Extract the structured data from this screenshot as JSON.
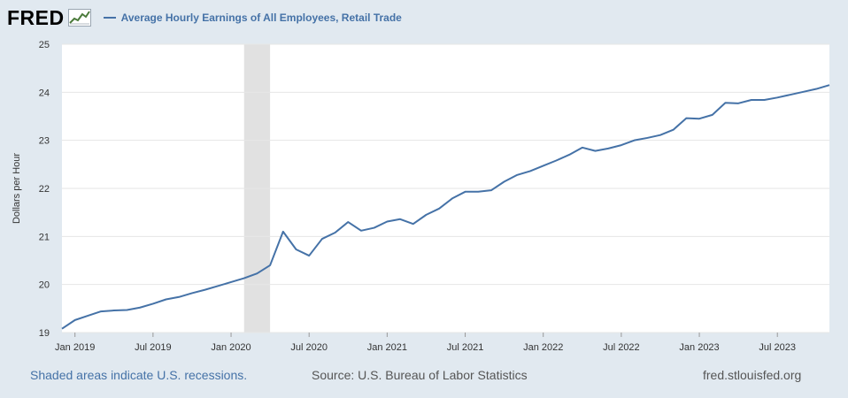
{
  "header": {
    "logo_text": "FRED",
    "series_title": "Average Hourly Earnings of All Employees, Retail Trade"
  },
  "footer": {
    "recession_note": "Shaded areas indicate U.S. recessions.",
    "source": "Source: U.S. Bureau of Labor Statistics",
    "site": "fred.stlouisfed.org"
  },
  "chart_data": {
    "type": "line",
    "title": "",
    "xlabel": "",
    "ylabel": "Dollars per Hour",
    "ylim": [
      19,
      25
    ],
    "y_ticks": [
      19,
      20,
      21,
      22,
      23,
      24,
      25
    ],
    "x_ticks": [
      "Jan 2019",
      "Jul 2019",
      "Jan 2020",
      "Jul 2020",
      "Jan 2021",
      "Jul 2021",
      "Jan 2022",
      "Jul 2022",
      "Jan 2023",
      "Jul 2023"
    ],
    "x_range": [
      "2018-12",
      "2023-11"
    ],
    "grid": true,
    "recession_shading": [
      "2020-02",
      "2020-04"
    ],
    "line_color": "#4572a7",
    "series": [
      {
        "name": "Average Hourly Earnings of All Employees, Retail Trade",
        "x": [
          "2018-12",
          "2019-01",
          "2019-02",
          "2019-03",
          "2019-04",
          "2019-05",
          "2019-06",
          "2019-07",
          "2019-08",
          "2019-09",
          "2019-10",
          "2019-11",
          "2019-12",
          "2020-01",
          "2020-02",
          "2020-03",
          "2020-04",
          "2020-05",
          "2020-06",
          "2020-07",
          "2020-08",
          "2020-09",
          "2020-10",
          "2020-11",
          "2020-12",
          "2021-01",
          "2021-02",
          "2021-03",
          "2021-04",
          "2021-05",
          "2021-06",
          "2021-07",
          "2021-08",
          "2021-09",
          "2021-10",
          "2021-11",
          "2021-12",
          "2022-01",
          "2022-02",
          "2022-03",
          "2022-04",
          "2022-05",
          "2022-06",
          "2022-07",
          "2022-08",
          "2022-09",
          "2022-10",
          "2022-11",
          "2022-12",
          "2023-01",
          "2023-02",
          "2023-03",
          "2023-04",
          "2023-05",
          "2023-06",
          "2023-07",
          "2023-08",
          "2023-09",
          "2023-10",
          "2023-11"
        ],
        "values": [
          19.08,
          19.26,
          19.35,
          19.44,
          19.46,
          19.47,
          19.52,
          19.6,
          19.69,
          19.74,
          19.82,
          19.89,
          19.97,
          20.05,
          20.13,
          20.23,
          20.4,
          21.1,
          20.73,
          20.6,
          20.95,
          21.08,
          21.3,
          21.12,
          21.18,
          21.31,
          21.36,
          21.26,
          21.45,
          21.58,
          21.79,
          21.93,
          21.93,
          21.96,
          22.14,
          22.28,
          22.36,
          22.47,
          22.58,
          22.7,
          22.85,
          22.78,
          22.83,
          22.9,
          23.0,
          23.05,
          23.11,
          23.22,
          23.46,
          23.45,
          23.53,
          23.78,
          23.77,
          23.84,
          23.84,
          23.89,
          23.95,
          24.01,
          24.07,
          24.15
        ]
      }
    ]
  }
}
